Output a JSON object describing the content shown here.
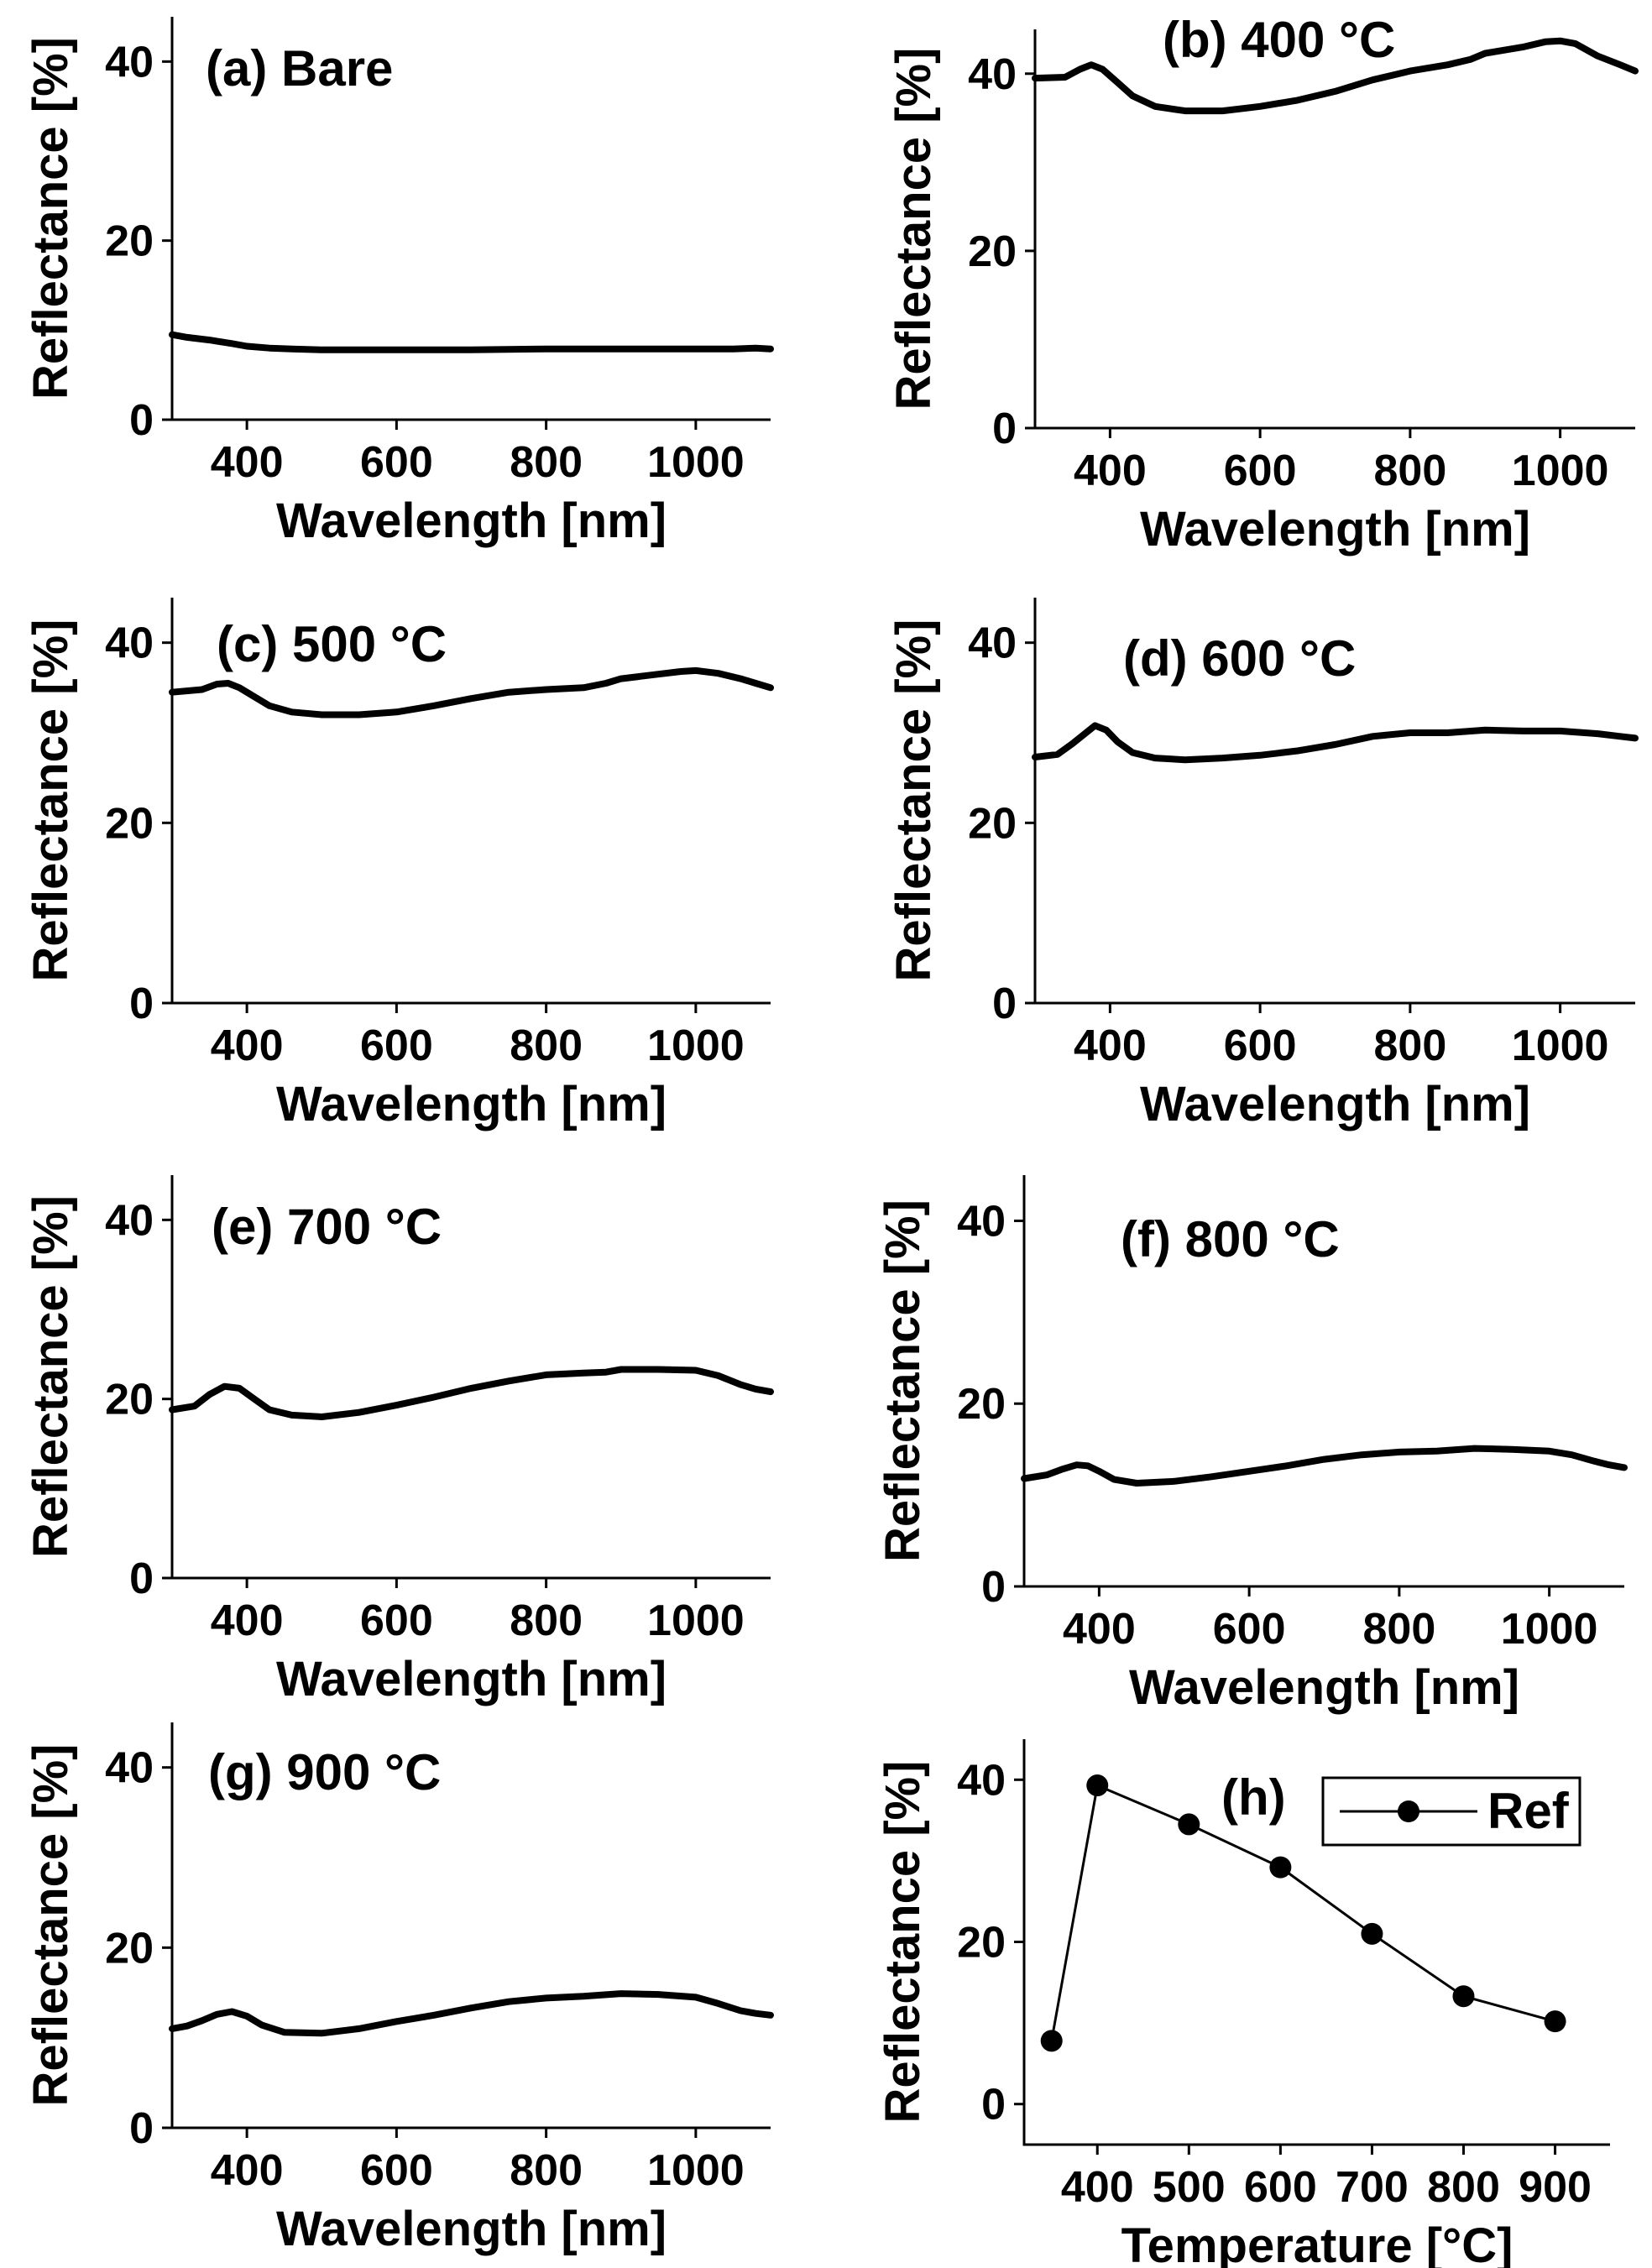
{
  "chart_data": [
    {
      "id": "a",
      "type": "line",
      "title": "(a) Bare",
      "xlabel": "Wavelength [nm]",
      "ylabel": "Reflectance [%]",
      "xlim": [
        300,
        1100
      ],
      "ylim": [
        0,
        45
      ],
      "xticks": [
        "400",
        "600",
        "800",
        "1000"
      ],
      "yticks": [
        "0",
        "20",
        "40"
      ],
      "series": [
        {
          "name": "Bare",
          "x": [
            300,
            320,
            350,
            380,
            400,
            430,
            460,
            500,
            550,
            600,
            700,
            800,
            900,
            1000,
            1050,
            1080,
            1100
          ],
          "values": [
            9.5,
            9.2,
            8.9,
            8.5,
            8.2,
            8.0,
            7.9,
            7.8,
            7.8,
            7.8,
            7.8,
            7.9,
            7.9,
            7.9,
            7.9,
            8.0,
            7.9
          ]
        }
      ]
    },
    {
      "id": "b",
      "type": "line",
      "title": "(b) 400 °C",
      "xlabel": "Wavelength [nm]",
      "ylabel": "Reflectance [%]",
      "xlim": [
        300,
        1100
      ],
      "ylim": [
        0,
        45
      ],
      "xticks": [
        "400",
        "600",
        "800",
        "1000"
      ],
      "yticks": [
        "0",
        "20",
        "40"
      ],
      "series": [
        {
          "name": "400 °C",
          "x": [
            300,
            340,
            360,
            375,
            390,
            410,
            430,
            460,
            500,
            550,
            600,
            650,
            700,
            750,
            800,
            850,
            880,
            900,
            950,
            980,
            1000,
            1020,
            1050,
            1080,
            1100
          ],
          "values": [
            39.5,
            39.6,
            40.5,
            41.0,
            40.5,
            39.0,
            37.5,
            36.3,
            35.8,
            35.8,
            36.3,
            37.0,
            38.0,
            39.3,
            40.3,
            41.0,
            41.6,
            42.3,
            43.0,
            43.6,
            43.7,
            43.4,
            42.0,
            41.0,
            40.3
          ]
        }
      ]
    },
    {
      "id": "c",
      "type": "line",
      "title": "(c) 500 °C",
      "xlabel": "Wavelength [nm]",
      "ylabel": "Reflectance [%]",
      "xlim": [
        300,
        1100
      ],
      "ylim": [
        0,
        45
      ],
      "xticks": [
        "400",
        "600",
        "800",
        "1000"
      ],
      "yticks": [
        "0",
        "20",
        "40"
      ],
      "series": [
        {
          "name": "500 °C",
          "x": [
            300,
            340,
            360,
            375,
            390,
            410,
            430,
            460,
            500,
            550,
            600,
            650,
            700,
            750,
            800,
            850,
            880,
            900,
            950,
            980,
            1000,
            1030,
            1060,
            1080,
            1100
          ],
          "values": [
            34.5,
            34.8,
            35.4,
            35.5,
            35.0,
            34.0,
            33.0,
            32.3,
            32.0,
            32.0,
            32.3,
            33.0,
            33.8,
            34.5,
            34.8,
            35.0,
            35.5,
            36.0,
            36.5,
            36.8,
            36.9,
            36.6,
            36.0,
            35.5,
            35.0
          ]
        }
      ]
    },
    {
      "id": "d",
      "type": "line",
      "title": "(d) 600 °C",
      "xlabel": "Wavelength [nm]",
      "ylabel": "Reflectance [%]",
      "xlim": [
        300,
        1100
      ],
      "ylim": [
        0,
        45
      ],
      "xticks": [
        "400",
        "600",
        "800",
        "1000"
      ],
      "yticks": [
        "0",
        "20",
        "40"
      ],
      "series": [
        {
          "name": "600 °C",
          "x": [
            300,
            330,
            350,
            365,
            380,
            395,
            410,
            430,
            460,
            500,
            550,
            600,
            650,
            700,
            750,
            800,
            850,
            900,
            950,
            1000,
            1050,
            1080,
            1100
          ],
          "values": [
            27.3,
            27.6,
            28.8,
            29.8,
            30.8,
            30.3,
            29.0,
            27.8,
            27.2,
            27.0,
            27.2,
            27.5,
            28.0,
            28.7,
            29.6,
            30.0,
            30.0,
            30.3,
            30.2,
            30.2,
            29.9,
            29.6,
            29.4
          ]
        }
      ]
    },
    {
      "id": "e",
      "type": "line",
      "title": "(e) 700 °C",
      "xlabel": "Wavelength [nm]",
      "ylabel": "Reflectance [%]",
      "xlim": [
        300,
        1100
      ],
      "ylim": [
        0,
        45
      ],
      "xticks": [
        "400",
        "600",
        "800",
        "1000"
      ],
      "yticks": [
        "0",
        "20",
        "40"
      ],
      "series": [
        {
          "name": "700 °C",
          "x": [
            300,
            330,
            350,
            370,
            390,
            410,
            430,
            460,
            500,
            550,
            600,
            650,
            700,
            750,
            800,
            850,
            880,
            900,
            950,
            1000,
            1030,
            1060,
            1080,
            1100
          ],
          "values": [
            18.8,
            19.2,
            20.5,
            21.4,
            21.2,
            20.0,
            18.8,
            18.2,
            18.0,
            18.5,
            19.3,
            20.2,
            21.2,
            22.0,
            22.7,
            22.9,
            23.0,
            23.3,
            23.3,
            23.2,
            22.6,
            21.6,
            21.1,
            20.8
          ]
        }
      ]
    },
    {
      "id": "f",
      "type": "line",
      "title": "(f) 800 °C",
      "xlabel": "Wavelength [nm]",
      "ylabel": "Reflectance [%]",
      "xlim": [
        300,
        1100
      ],
      "ylim": [
        0,
        45
      ],
      "xticks": [
        "400",
        "600",
        "800",
        "1000"
      ],
      "yticks": [
        "0",
        "20",
        "40"
      ],
      "series": [
        {
          "name": "800 °C",
          "x": [
            300,
            330,
            350,
            370,
            385,
            400,
            420,
            450,
            500,
            550,
            600,
            650,
            700,
            750,
            800,
            850,
            900,
            950,
            1000,
            1030,
            1060,
            1080,
            1100
          ],
          "values": [
            11.8,
            12.2,
            12.8,
            13.3,
            13.2,
            12.6,
            11.7,
            11.3,
            11.5,
            12.0,
            12.6,
            13.2,
            13.9,
            14.4,
            14.7,
            14.8,
            15.1,
            15.0,
            14.8,
            14.4,
            13.7,
            13.3,
            13.0
          ]
        }
      ]
    },
    {
      "id": "g",
      "type": "line",
      "title": "(g) 900 °C",
      "xlabel": "Wavelength [nm]",
      "ylabel": "Reflectance [%]",
      "xlim": [
        300,
        1100
      ],
      "ylim": [
        0,
        45
      ],
      "xticks": [
        "400",
        "600",
        "800",
        "1000"
      ],
      "yticks": [
        "0",
        "20",
        "40"
      ],
      "series": [
        {
          "name": "900 °C",
          "x": [
            300,
            320,
            340,
            360,
            380,
            400,
            420,
            450,
            500,
            550,
            600,
            650,
            700,
            750,
            800,
            850,
            900,
            950,
            1000,
            1030,
            1060,
            1080,
            1100
          ],
          "values": [
            11.0,
            11.3,
            11.9,
            12.6,
            12.9,
            12.4,
            11.4,
            10.6,
            10.5,
            11.0,
            11.8,
            12.5,
            13.3,
            14.0,
            14.4,
            14.6,
            14.9,
            14.8,
            14.5,
            13.8,
            13.0,
            12.7,
            12.5
          ]
        }
      ]
    },
    {
      "id": "h",
      "type": "line",
      "title": "(h)",
      "xlabel": "Temperature [°C]",
      "ylabel": "Reflectance [%]",
      "xlim": [
        320,
        960
      ],
      "ylim": [
        -5,
        45
      ],
      "xticks": [
        "400",
        "500",
        "600",
        "700",
        "800",
        "900"
      ],
      "yticks": [
        "0",
        "20",
        "40"
      ],
      "legend": {
        "label": "Ref",
        "position": "top-right"
      },
      "series": [
        {
          "name": "Ref",
          "x": [
            350,
            400,
            500,
            600,
            700,
            800,
            900
          ],
          "values": [
            7.8,
            39.3,
            34.5,
            29.2,
            21.0,
            13.3,
            10.2
          ]
        }
      ]
    }
  ]
}
